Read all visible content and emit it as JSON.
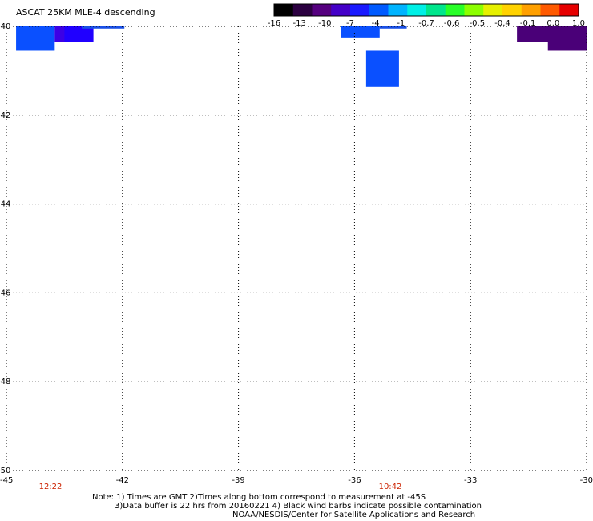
{
  "title": "ASCAT 25KM MLE-4 descending",
  "colorbar": {
    "labels": [
      "-16",
      "-13",
      "-10",
      "-7",
      "-4",
      "-1",
      "-0.7",
      "-0.6",
      "-0.5",
      "-0.4",
      "-0.1",
      "0.0",
      "1.0"
    ],
    "colors": [
      "#000000",
      "#2b0040",
      "#55007f",
      "#4400c8",
      "#1a1aff",
      "#005aff",
      "#00b4ff",
      "#00f0e6",
      "#00e68c",
      "#28ff28",
      "#8cff00",
      "#e6f000",
      "#ffd200",
      "#ffa000",
      "#ff5a00",
      "#e60000"
    ]
  },
  "map": {
    "lon_labels": [
      "-45",
      "-42",
      "-39",
      "-36",
      "-33",
      "-30"
    ],
    "lat_labels": [
      "-40",
      "-42",
      "-44",
      "-46",
      "-48",
      "-50"
    ],
    "time_labels": [
      "12:22",
      "10:42"
    ],
    "time_color": "#cc2200",
    "patches": [
      {
        "lon0": -44.75,
        "lon1": -43.75,
        "lat0": -40.0,
        "lat1": -40.55,
        "color": "#0a50ff"
      },
      {
        "lon0": -43.75,
        "lon1": -43.0,
        "lat0": -40.0,
        "lat1": -40.35,
        "color": "#3c00e6"
      },
      {
        "lon0": -43.5,
        "lon1": -42.75,
        "lat0": -40.0,
        "lat1": -40.35,
        "color": "#2000ff"
      },
      {
        "lon0": -43.05,
        "lon1": -41.95,
        "lat0": -40.0,
        "lat1": -40.05,
        "color": "#1a50e6"
      },
      {
        "lon0": -36.35,
        "lon1": -35.35,
        "lat0": -40.0,
        "lat1": -40.25,
        "color": "#0a50ff"
      },
      {
        "lon0": -35.35,
        "lon1": -34.65,
        "lat0": -40.0,
        "lat1": -40.05,
        "color": "#1a50e6"
      },
      {
        "lon0": -35.7,
        "lon1": -34.85,
        "lat0": -40.55,
        "lat1": -41.35,
        "color": "#0a50ff"
      },
      {
        "lon0": -31.8,
        "lon1": -30.0,
        "lat0": -40.0,
        "lat1": -40.35,
        "color": "#4a0078"
      },
      {
        "lon0": -31.0,
        "lon1": -30.0,
        "lat0": -40.35,
        "lat1": -40.55,
        "color": "#4a0078"
      }
    ]
  },
  "notes": {
    "line1": "Note: 1) Times are GMT 2)Times along bottom correspond to measurement at -45S",
    "line2": "3)Data buffer is 22 hrs from 20160221 4) Black wind barbs indicate possible contamination",
    "line3": "NOAA/NESDIS/Center for Satellite Applications and Research"
  }
}
